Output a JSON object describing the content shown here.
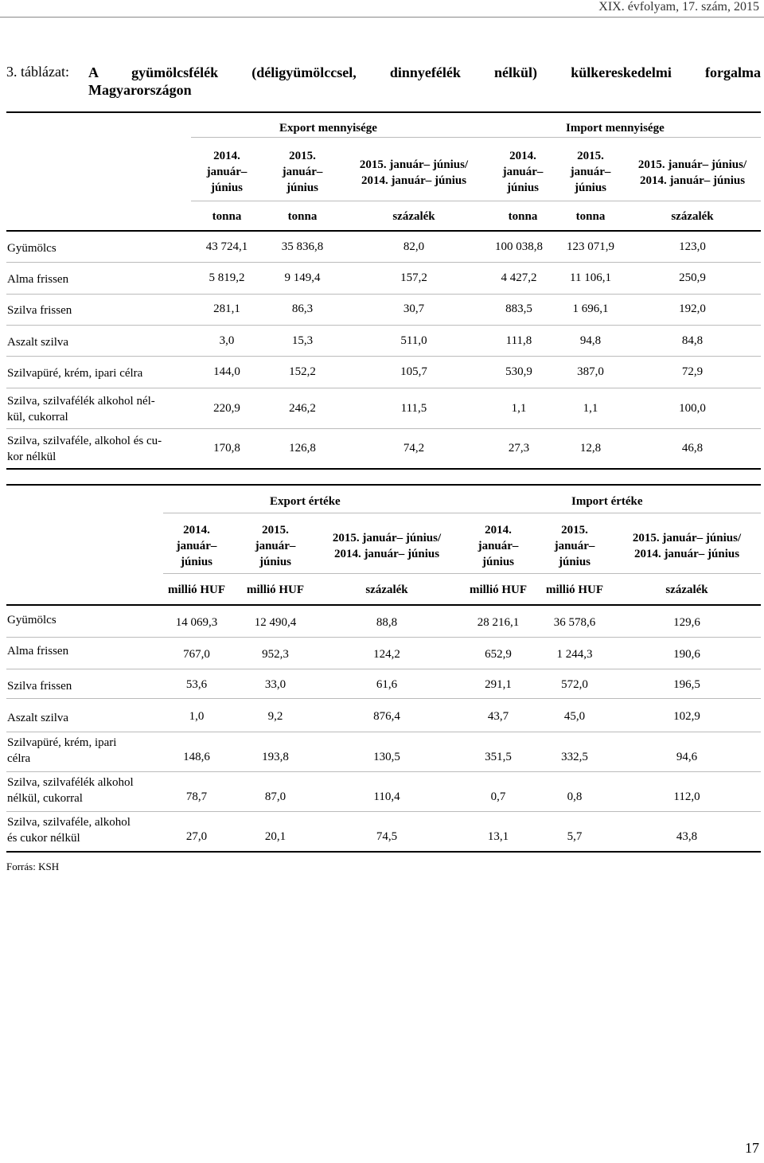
{
  "header": {
    "journal": "XIX. évfolyam, 17. szám, 2015"
  },
  "title": {
    "number": "3. táblázat:",
    "text_line1": "A gyümölcsfélék (déligyümölccsel, dinnyefélék nélkül) külkereskedelmi forgalma",
    "text_line2": "Magyarországon"
  },
  "table1": {
    "group_export": "Export mennyisége",
    "group_import": "Import mennyisége",
    "col_headers": [
      [
        "2014.",
        "január–",
        "június"
      ],
      [
        "2015.",
        "január–",
        "június"
      ],
      [
        "2015. január– június/",
        "2014. január– június"
      ],
      [
        "2014.",
        "január–",
        "június"
      ],
      [
        "2015.",
        "január–",
        "június"
      ],
      [
        "2015. január– június/",
        "2014. január– június"
      ]
    ],
    "units": [
      "tonna",
      "tonna",
      "százalék",
      "tonna",
      "tonna",
      "százalék"
    ],
    "rows": [
      {
        "label": [
          "Gyümölcs"
        ],
        "values": [
          "43 724,1",
          "35 836,8",
          "82,0",
          "100 038,8",
          "123 071,9",
          "123,0"
        ]
      },
      {
        "label": [
          "Alma frissen"
        ],
        "values": [
          "5 819,2",
          "9 149,4",
          "157,2",
          "4 427,2",
          "11 106,1",
          "250,9"
        ]
      },
      {
        "label": [
          "Szilva frissen"
        ],
        "values": [
          "281,1",
          "86,3",
          "30,7",
          "883,5",
          "1 696,1",
          "192,0"
        ]
      },
      {
        "label": [
          "Aszalt szilva"
        ],
        "values": [
          "3,0",
          "15,3",
          "511,0",
          "111,8",
          "94,8",
          "84,8"
        ]
      },
      {
        "label": [
          "Szilvapüré, krém, ipari célra"
        ],
        "values": [
          "144,0",
          "152,2",
          "105,7",
          "530,9",
          "387,0",
          "72,9"
        ]
      },
      {
        "label": [
          "Szilva, szilvafélék alkohol nél-",
          "kül, cukorral"
        ],
        "values": [
          "220,9",
          "246,2",
          "111,5",
          "1,1",
          "1,1",
          "100,0"
        ]
      },
      {
        "label": [
          "Szilva, szilvaféle, alkohol és cu-",
          "kor nélkül"
        ],
        "values": [
          "170,8",
          "126,8",
          "74,2",
          "27,3",
          "12,8",
          "46,8"
        ]
      }
    ]
  },
  "table2": {
    "group_export": "Export értéke",
    "group_import": "Import értéke",
    "col_headers": [
      [
        "2014.",
        "január–",
        "június"
      ],
      [
        "2015.",
        "január–",
        "június"
      ],
      [
        "2015. január– június/",
        "2014. január– június"
      ],
      [
        "2014.",
        "január–",
        "június"
      ],
      [
        "2015.",
        "január–",
        "június"
      ],
      [
        "2015. január– június/",
        "2014. január– június"
      ]
    ],
    "units": [
      "millió HUF",
      "millió HUF",
      "százalék",
      "millió HUF",
      "millió HUF",
      "százalék"
    ],
    "rows": [
      {
        "label": [
          "Gyümölcs"
        ],
        "values": [
          "14 069,3",
          "12 490,4",
          "88,8",
          "28 216,1",
          "36 578,6",
          "129,6"
        ]
      },
      {
        "label": [
          "Alma frissen"
        ],
        "values": [
          "767,0",
          "952,3",
          "124,2",
          "652,9",
          "1 244,3",
          "190,6"
        ]
      },
      {
        "label": [
          "Szilva frissen"
        ],
        "values": [
          "53,6",
          "33,0",
          "61,6",
          "291,1",
          "572,0",
          "196,5"
        ]
      },
      {
        "label": [
          "Aszalt szilva"
        ],
        "values": [
          "1,0",
          "9,2",
          "876,4",
          "43,7",
          "45,0",
          "102,9"
        ]
      },
      {
        "label": [
          "Szilvapüré, krém, ipari",
          "célra"
        ],
        "values": [
          "148,6",
          "193,8",
          "130,5",
          "351,5",
          "332,5",
          "94,6"
        ]
      },
      {
        "label": [
          "Szilva, szilvafélék alkohol",
          "nélkül, cukorral"
        ],
        "values": [
          "78,7",
          "87,0",
          "110,4",
          "0,7",
          "0,8",
          "112,0"
        ]
      },
      {
        "label": [
          "Szilva, szilvaféle, alkohol",
          "és cukor nélkül"
        ],
        "values": [
          "27,0",
          "20,1",
          "74,5",
          "13,1",
          "5,7",
          "43,8"
        ]
      }
    ]
  },
  "source": "Forrás: KSH",
  "page_number": "17"
}
